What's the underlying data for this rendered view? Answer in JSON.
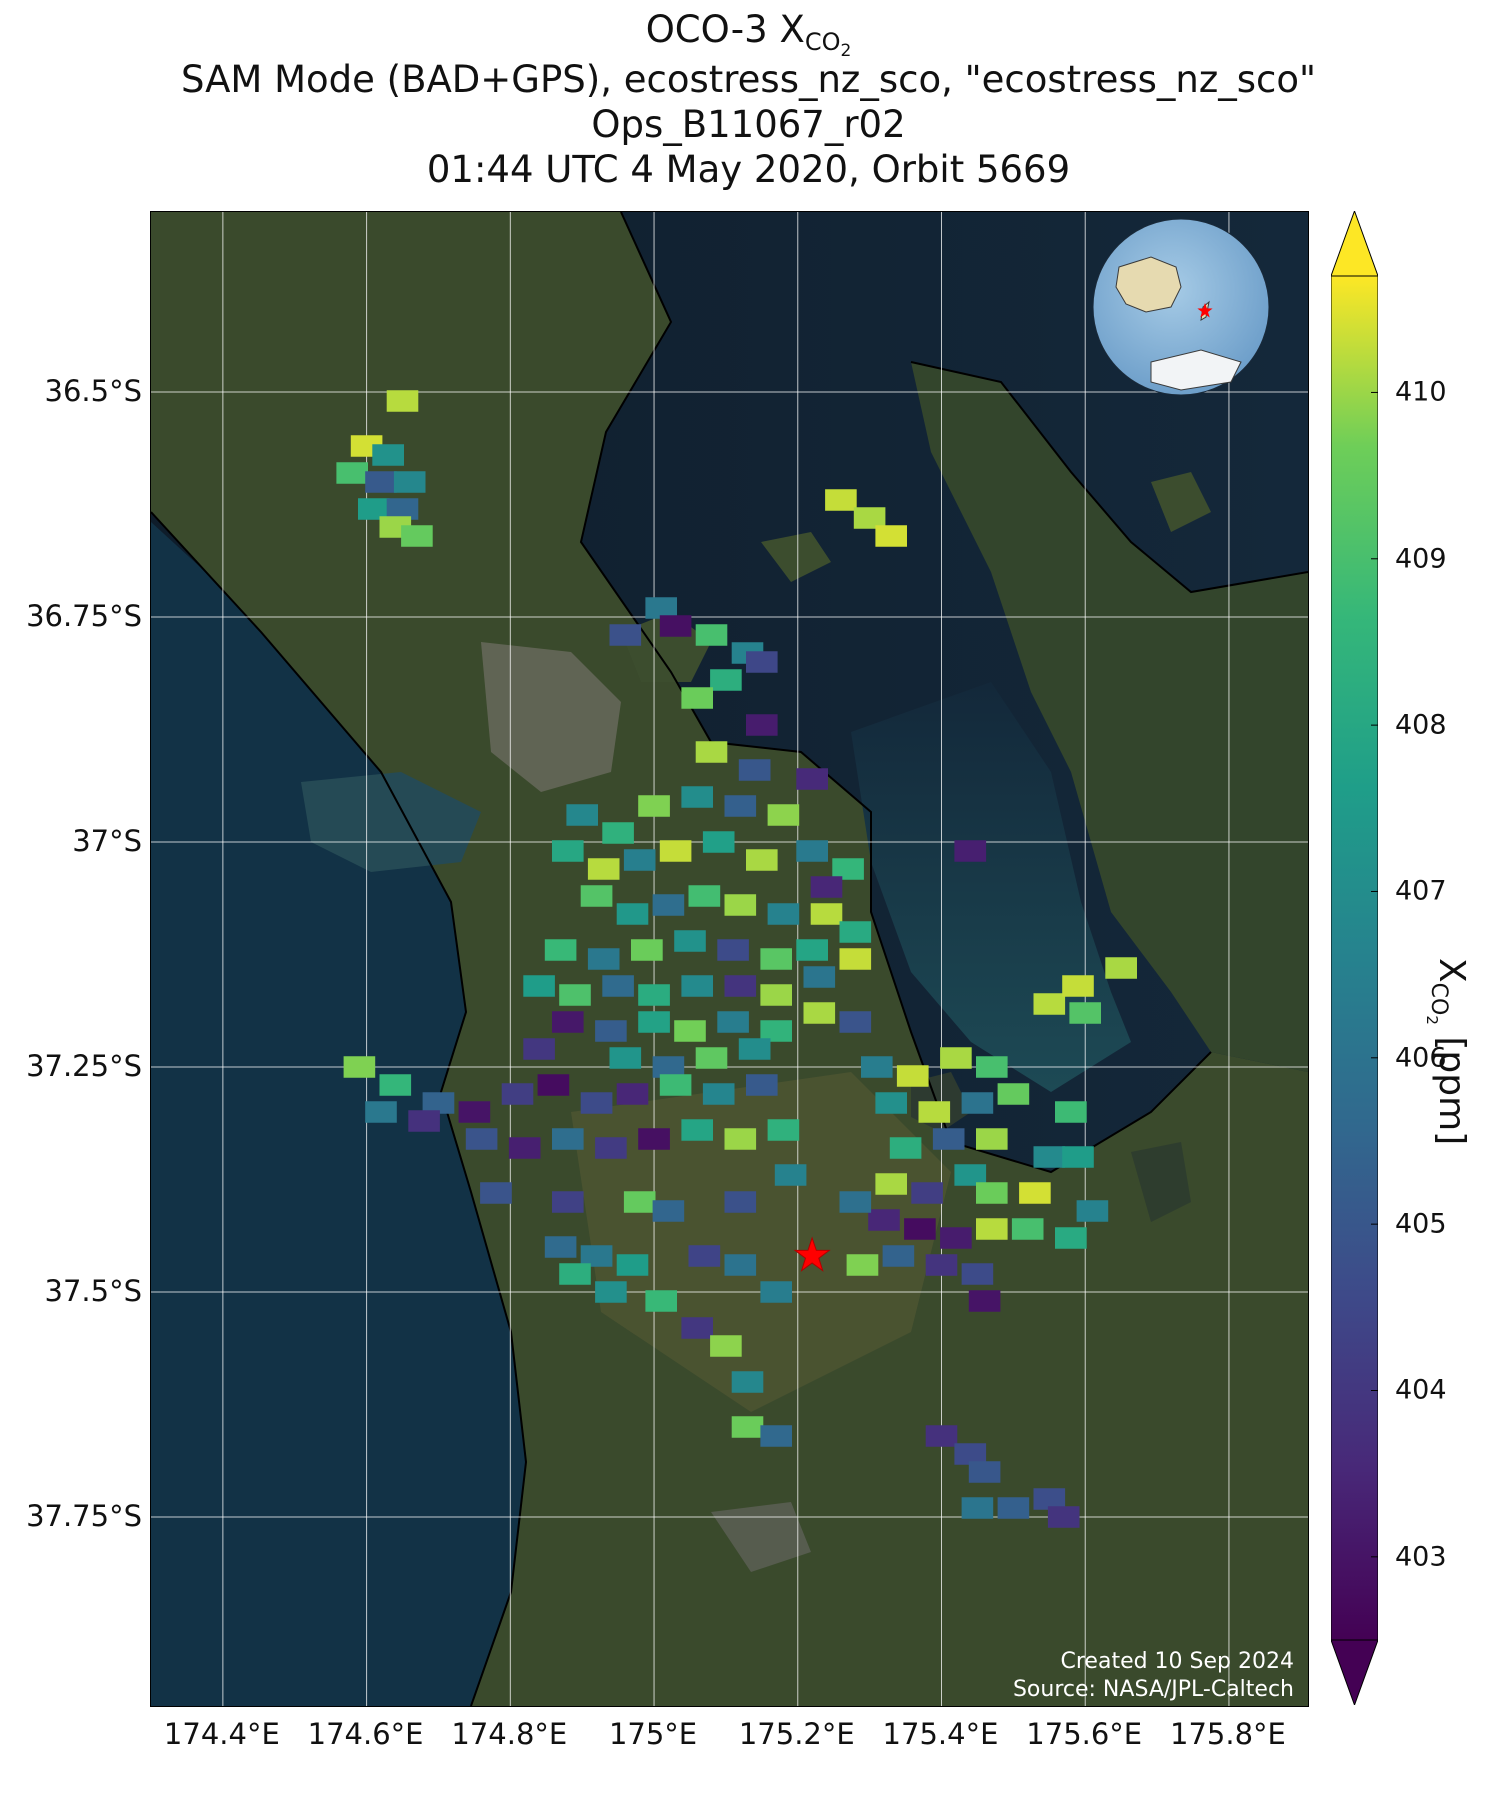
{
  "title": {
    "line1_prefix": "OCO-3 X",
    "line1_sub": "CO",
    "line1_subsub": "2",
    "line2": "SAM Mode (BAD+GPS), ecostress_nz_sco, \"ecostress_nz_sco\"",
    "line3": "Ops_B11067_r02",
    "line4": "01:44 UTC 4 May 2020, Orbit 5669"
  },
  "axes": {
    "lat_ticks": [
      "36.5°S",
      "36.75°S",
      "37°S",
      "37.25°S",
      "37.5°S",
      "37.75°S"
    ],
    "lat_values": [
      -36.5,
      -36.75,
      -37.0,
      -37.25,
      -37.5,
      -37.75
    ],
    "lon_ticks": [
      "174.4°E",
      "174.6°E",
      "174.8°E",
      "175°E",
      "175.2°E",
      "175.4°E",
      "175.6°E",
      "175.8°E"
    ],
    "lon_values": [
      174.4,
      174.6,
      174.8,
      175.0,
      175.2,
      175.4,
      175.6,
      175.8
    ],
    "lon_range": [
      174.3,
      175.91
    ],
    "lat_range": [
      -37.96,
      -36.3
    ],
    "gridlines": true
  },
  "colorbar": {
    "label_main": "X",
    "label_sub": "CO",
    "label_subsub": "2",
    "label_unit": " [ppm]",
    "ticks": [
      "403",
      "404",
      "405",
      "406",
      "407",
      "408",
      "409",
      "410"
    ],
    "tick_values": [
      403,
      404,
      405,
      406,
      407,
      408,
      409,
      410
    ],
    "range": [
      402.5,
      410.7
    ],
    "colormap": "viridis",
    "extend": "both"
  },
  "target_site": {
    "lon": 175.22,
    "lat": -37.46,
    "marker": "star",
    "color": "#ff0000"
  },
  "inset_globe": {
    "marker": "star",
    "marker_color": "#ff0000"
  },
  "credit": {
    "line1": "Created 10 Sep 2024",
    "line2": "Source: NASA/JPL-Caltech"
  },
  "chart_data": {
    "type": "scatter",
    "value_name": "XCO2 [ppm]",
    "points": [
      {
        "lon": 174.65,
        "lat": -36.51,
        "v": 410.2
      },
      {
        "lon": 174.6,
        "lat": -36.56,
        "v": 410.4
      },
      {
        "lon": 174.63,
        "lat": -36.57,
        "v": 407.2
      },
      {
        "lon": 174.58,
        "lat": -36.59,
        "v": 409.0
      },
      {
        "lon": 174.62,
        "lat": -36.6,
        "v": 405.1
      },
      {
        "lon": 174.66,
        "lat": -36.6,
        "v": 406.8
      },
      {
        "lon": 174.61,
        "lat": -36.63,
        "v": 407.6
      },
      {
        "lon": 174.65,
        "lat": -36.63,
        "v": 405.5
      },
      {
        "lon": 174.64,
        "lat": -36.65,
        "v": 410.0
      },
      {
        "lon": 174.67,
        "lat": -36.66,
        "v": 409.5
      },
      {
        "lon": 175.26,
        "lat": -36.62,
        "v": 410.3
      },
      {
        "lon": 175.3,
        "lat": -36.64,
        "v": 410.1
      },
      {
        "lon": 175.33,
        "lat": -36.66,
        "v": 410.4
      },
      {
        "lon": 175.01,
        "lat": -36.74,
        "v": 406.2
      },
      {
        "lon": 174.96,
        "lat": -36.77,
        "v": 404.8
      },
      {
        "lon": 175.03,
        "lat": -36.76,
        "v": 402.9
      },
      {
        "lon": 175.08,
        "lat": -36.77,
        "v": 409.0
      },
      {
        "lon": 175.13,
        "lat": -36.79,
        "v": 406.6
      },
      {
        "lon": 175.1,
        "lat": -36.82,
        "v": 408.3
      },
      {
        "lon": 175.15,
        "lat": -36.8,
        "v": 404.5
      },
      {
        "lon": 175.06,
        "lat": -36.84,
        "v": 409.6
      },
      {
        "lon": 175.15,
        "lat": -36.87,
        "v": 403.2
      },
      {
        "lon": 175.08,
        "lat": -36.9,
        "v": 410.1
      },
      {
        "lon": 175.14,
        "lat": -36.92,
        "v": 405.0
      },
      {
        "lon": 175.22,
        "lat": -36.93,
        "v": 403.6
      },
      {
        "lon": 174.9,
        "lat": -36.97,
        "v": 406.8
      },
      {
        "lon": 174.95,
        "lat": -36.99,
        "v": 408.4
      },
      {
        "lon": 175.0,
        "lat": -36.96,
        "v": 409.8
      },
      {
        "lon": 175.06,
        "lat": -36.95,
        "v": 407.0
      },
      {
        "lon": 175.12,
        "lat": -36.96,
        "v": 405.3
      },
      {
        "lon": 175.18,
        "lat": -36.97,
        "v": 409.9
      },
      {
        "lon": 174.88,
        "lat": -37.01,
        "v": 408.0
      },
      {
        "lon": 174.93,
        "lat": -37.03,
        "v": 410.2
      },
      {
        "lon": 174.98,
        "lat": -37.02,
        "v": 406.5
      },
      {
        "lon": 175.03,
        "lat": -37.01,
        "v": 410.3
      },
      {
        "lon": 175.09,
        "lat": -37.0,
        "v": 407.7
      },
      {
        "lon": 175.15,
        "lat": -37.02,
        "v": 410.1
      },
      {
        "lon": 175.22,
        "lat": -37.01,
        "v": 406.3
      },
      {
        "lon": 175.27,
        "lat": -37.03,
        "v": 408.6
      },
      {
        "lon": 175.24,
        "lat": -37.05,
        "v": 403.5
      },
      {
        "lon": 174.92,
        "lat": -37.06,
        "v": 409.2
      },
      {
        "lon": 174.97,
        "lat": -37.08,
        "v": 407.4
      },
      {
        "lon": 175.02,
        "lat": -37.07,
        "v": 405.8
      },
      {
        "lon": 175.07,
        "lat": -37.06,
        "v": 408.9
      },
      {
        "lon": 175.12,
        "lat": -37.07,
        "v": 410.0
      },
      {
        "lon": 175.18,
        "lat": -37.08,
        "v": 406.6
      },
      {
        "lon": 175.24,
        "lat": -37.08,
        "v": 410.2
      },
      {
        "lon": 175.28,
        "lat": -37.1,
        "v": 408.1
      },
      {
        "lon": 174.87,
        "lat": -37.12,
        "v": 408.7
      },
      {
        "lon": 174.93,
        "lat": -37.13,
        "v": 406.2
      },
      {
        "lon": 174.99,
        "lat": -37.12,
        "v": 409.6
      },
      {
        "lon": 175.05,
        "lat": -37.11,
        "v": 407.2
      },
      {
        "lon": 175.11,
        "lat": -37.12,
        "v": 404.6
      },
      {
        "lon": 175.17,
        "lat": -37.13,
        "v": 409.3
      },
      {
        "lon": 175.22,
        "lat": -37.12,
        "v": 407.9
      },
      {
        "lon": 175.28,
        "lat": -37.13,
        "v": 410.3
      },
      {
        "lon": 174.84,
        "lat": -37.16,
        "v": 407.6
      },
      {
        "lon": 174.89,
        "lat": -37.17,
        "v": 409.1
      },
      {
        "lon": 174.95,
        "lat": -37.16,
        "v": 405.7
      },
      {
        "lon": 175.0,
        "lat": -37.17,
        "v": 408.2
      },
      {
        "lon": 175.06,
        "lat": -37.16,
        "v": 406.9
      },
      {
        "lon": 175.12,
        "lat": -37.16,
        "v": 403.9
      },
      {
        "lon": 175.17,
        "lat": -37.17,
        "v": 410.0
      },
      {
        "lon": 175.23,
        "lat": -37.15,
        "v": 406.1
      },
      {
        "lon": 174.88,
        "lat": -37.2,
        "v": 403.1
      },
      {
        "lon": 174.94,
        "lat": -37.21,
        "v": 405.2
      },
      {
        "lon": 175.0,
        "lat": -37.2,
        "v": 407.8
      },
      {
        "lon": 175.05,
        "lat": -37.21,
        "v": 409.7
      },
      {
        "lon": 175.11,
        "lat": -37.2,
        "v": 406.4
      },
      {
        "lon": 175.17,
        "lat": -37.21,
        "v": 408.5
      },
      {
        "lon": 175.23,
        "lat": -37.19,
        "v": 410.1
      },
      {
        "lon": 175.28,
        "lat": -37.2,
        "v": 404.9
      },
      {
        "lon": 174.84,
        "lat": -37.23,
        "v": 404.0
      },
      {
        "lon": 174.96,
        "lat": -37.24,
        "v": 407.3
      },
      {
        "lon": 175.02,
        "lat": -37.25,
        "v": 405.6
      },
      {
        "lon": 175.08,
        "lat": -37.24,
        "v": 409.4
      },
      {
        "lon": 175.14,
        "lat": -37.23,
        "v": 407.0
      },
      {
        "lon": 174.59,
        "lat": -37.25,
        "v": 409.8
      },
      {
        "lon": 174.64,
        "lat": -37.27,
        "v": 408.6
      },
      {
        "lon": 174.7,
        "lat": -37.29,
        "v": 405.4
      },
      {
        "lon": 174.62,
        "lat": -37.3,
        "v": 406.2
      },
      {
        "lon": 174.68,
        "lat": -37.31,
        "v": 403.8
      },
      {
        "lon": 174.75,
        "lat": -37.3,
        "v": 403.0
      },
      {
        "lon": 174.81,
        "lat": -37.28,
        "v": 404.2
      },
      {
        "lon": 174.86,
        "lat": -37.27,
        "v": 402.8
      },
      {
        "lon": 174.92,
        "lat": -37.29,
        "v": 404.6
      },
      {
        "lon": 174.97,
        "lat": -37.28,
        "v": 403.5
      },
      {
        "lon": 175.03,
        "lat": -37.27,
        "v": 408.8
      },
      {
        "lon": 175.09,
        "lat": -37.28,
        "v": 406.7
      },
      {
        "lon": 175.15,
        "lat": -37.27,
        "v": 405.1
      },
      {
        "lon": 174.76,
        "lat": -37.33,
        "v": 404.9
      },
      {
        "lon": 174.82,
        "lat": -37.34,
        "v": 403.3
      },
      {
        "lon": 174.88,
        "lat": -37.33,
        "v": 405.8
      },
      {
        "lon": 174.94,
        "lat": -37.34,
        "v": 404.1
      },
      {
        "lon": 175.0,
        "lat": -37.33,
        "v": 402.9
      },
      {
        "lon": 175.06,
        "lat": -37.32,
        "v": 407.9
      },
      {
        "lon": 175.12,
        "lat": -37.33,
        "v": 410.0
      },
      {
        "lon": 175.18,
        "lat": -37.32,
        "v": 408.4
      },
      {
        "lon": 175.31,
        "lat": -37.25,
        "v": 406.4
      },
      {
        "lon": 175.36,
        "lat": -37.26,
        "v": 410.3
      },
      {
        "lon": 175.42,
        "lat": -37.24,
        "v": 410.1
      },
      {
        "lon": 175.47,
        "lat": -37.25,
        "v": 409.0
      },
      {
        "lon": 175.33,
        "lat": -37.29,
        "v": 407.1
      },
      {
        "lon": 175.39,
        "lat": -37.3,
        "v": 410.2
      },
      {
        "lon": 175.45,
        "lat": -37.29,
        "v": 406.0
      },
      {
        "lon": 175.5,
        "lat": -37.28,
        "v": 409.5
      },
      {
        "lon": 175.35,
        "lat": -37.34,
        "v": 408.3
      },
      {
        "lon": 175.41,
        "lat": -37.33,
        "v": 405.2
      },
      {
        "lon": 175.47,
        "lat": -37.33,
        "v": 410.0
      },
      {
        "lon": 175.58,
        "lat": -37.3,
        "v": 408.8
      },
      {
        "lon": 175.55,
        "lat": -37.35,
        "v": 406.9
      },
      {
        "lon": 175.59,
        "lat": -37.35,
        "v": 407.6
      },
      {
        "lon": 175.33,
        "lat": -37.38,
        "v": 410.1
      },
      {
        "lon": 175.38,
        "lat": -37.39,
        "v": 404.2
      },
      {
        "lon": 175.44,
        "lat": -37.37,
        "v": 407.3
      },
      {
        "lon": 175.47,
        "lat": -37.39,
        "v": 409.6
      },
      {
        "lon": 175.53,
        "lat": -37.39,
        "v": 410.4
      },
      {
        "lon": 175.32,
        "lat": -37.42,
        "v": 403.5
      },
      {
        "lon": 175.37,
        "lat": -37.43,
        "v": 402.8
      },
      {
        "lon": 175.42,
        "lat": -37.44,
        "v": 403.2
      },
      {
        "lon": 175.47,
        "lat": -37.43,
        "v": 410.2
      },
      {
        "lon": 175.52,
        "lat": -37.43,
        "v": 409.0
      },
      {
        "lon": 175.58,
        "lat": -37.44,
        "v": 408.1
      },
      {
        "lon": 175.34,
        "lat": -37.46,
        "v": 405.4
      },
      {
        "lon": 175.4,
        "lat": -37.47,
        "v": 403.9
      },
      {
        "lon": 175.45,
        "lat": -37.48,
        "v": 404.6
      },
      {
        "lon": 175.29,
        "lat": -37.47,
        "v": 409.8
      },
      {
        "lon": 175.46,
        "lat": -37.51,
        "v": 403.0
      },
      {
        "lon": 175.55,
        "lat": -37.18,
        "v": 410.2
      },
      {
        "lon": 175.59,
        "lat": -37.16,
        "v": 410.3
      },
      {
        "lon": 175.6,
        "lat": -37.19,
        "v": 409.2
      },
      {
        "lon": 175.65,
        "lat": -37.14,
        "v": 410.1
      },
      {
        "lon": 175.61,
        "lat": -37.41,
        "v": 406.6
      },
      {
        "lon": 174.78,
        "lat": -37.39,
        "v": 404.9
      },
      {
        "lon": 174.88,
        "lat": -37.4,
        "v": 404.3
      },
      {
        "lon": 174.98,
        "lat": -37.4,
        "v": 409.5
      },
      {
        "lon": 175.02,
        "lat": -37.41,
        "v": 405.5
      },
      {
        "lon": 175.12,
        "lat": -37.4,
        "v": 404.8
      },
      {
        "lon": 175.19,
        "lat": -37.37,
        "v": 406.6
      },
      {
        "lon": 175.28,
        "lat": -37.4,
        "v": 405.9
      },
      {
        "lon": 174.87,
        "lat": -37.45,
        "v": 405.7
      },
      {
        "lon": 174.92,
        "lat": -37.46,
        "v": 406.2
      },
      {
        "lon": 174.97,
        "lat": -37.47,
        "v": 407.6
      },
      {
        "lon": 174.89,
        "lat": -37.48,
        "v": 408.3
      },
      {
        "lon": 174.94,
        "lat": -37.5,
        "v": 407.1
      },
      {
        "lon": 175.01,
        "lat": -37.51,
        "v": 408.7
      },
      {
        "lon": 175.07,
        "lat": -37.46,
        "v": 404.4
      },
      {
        "lon": 175.12,
        "lat": -37.47,
        "v": 406.0
      },
      {
        "lon": 175.17,
        "lat": -37.5,
        "v": 406.4
      },
      {
        "lon": 175.06,
        "lat": -37.54,
        "v": 404.0
      },
      {
        "lon": 175.1,
        "lat": -37.56,
        "v": 409.9
      },
      {
        "lon": 175.13,
        "lat": -37.6,
        "v": 406.8
      },
      {
        "lon": 175.13,
        "lat": -37.65,
        "v": 409.6
      },
      {
        "lon": 175.17,
        "lat": -37.66,
        "v": 405.6
      },
      {
        "lon": 175.4,
        "lat": -37.66,
        "v": 403.8
      },
      {
        "lon": 175.44,
        "lat": -37.68,
        "v": 404.6
      },
      {
        "lon": 175.46,
        "lat": -37.7,
        "v": 405.0
      },
      {
        "lon": 175.45,
        "lat": -37.74,
        "v": 406.1
      },
      {
        "lon": 175.5,
        "lat": -37.74,
        "v": 405.3
      },
      {
        "lon": 175.55,
        "lat": -37.73,
        "v": 404.7
      },
      {
        "lon": 175.57,
        "lat": -37.75,
        "v": 403.9
      },
      {
        "lon": 175.44,
        "lat": -37.01,
        "v": 403.3
      }
    ]
  }
}
